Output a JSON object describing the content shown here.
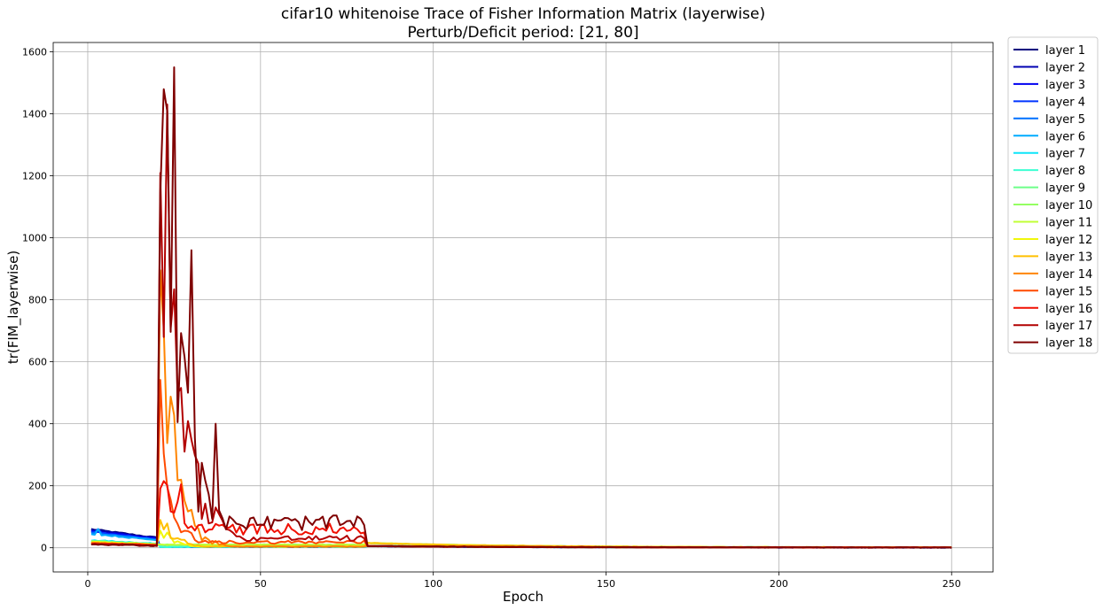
{
  "chart_data": {
    "type": "line",
    "title": "cifar10 whitenoise Trace of Fisher Information Matrix (layerwise)",
    "subtitle": "Perturb/Deficit period: [21, 80]",
    "xlabel": "Epoch",
    "ylabel": "tr(FIM_layerwise)",
    "xlim": [
      -10,
      262
    ],
    "ylim": [
      -78,
      1630
    ],
    "xticks": [
      0,
      50,
      100,
      150,
      200,
      250
    ],
    "yticks": [
      0,
      200,
      400,
      600,
      800,
      1000,
      1200,
      1400,
      1600
    ],
    "grid": true,
    "legend": "outside-right",
    "series": [
      {
        "name": "layer 1",
        "color": "#00007f"
      },
      {
        "name": "layer 2",
        "color": "#0000b2"
      },
      {
        "name": "layer 3",
        "color": "#0000f1"
      },
      {
        "name": "layer 4",
        "color": "#0034ff"
      },
      {
        "name": "layer 5",
        "color": "#0070ff"
      },
      {
        "name": "layer 6",
        "color": "#00acff"
      },
      {
        "name": "layer 7",
        "color": "#0de5f9"
      },
      {
        "name": "layer 8",
        "color": "#3dffd2"
      },
      {
        "name": "layer 9",
        "color": "#6dff89"
      },
      {
        "name": "layer 10",
        "color": "#94ff62"
      },
      {
        "name": "layer 11",
        "color": "#c1ff36"
      },
      {
        "name": "layer 12",
        "color": "#f0f70a"
      },
      {
        "name": "layer 13",
        "color": "#ffc000"
      },
      {
        "name": "layer 14",
        "color": "#ff8500"
      },
      {
        "name": "layer 15",
        "color": "#ff4a00"
      },
      {
        "name": "layer 16",
        "color": "#f10f00"
      },
      {
        "name": "layer 17",
        "color": "#b20000"
      },
      {
        "name": "layer 18",
        "color": "#7f0000"
      }
    ]
  }
}
